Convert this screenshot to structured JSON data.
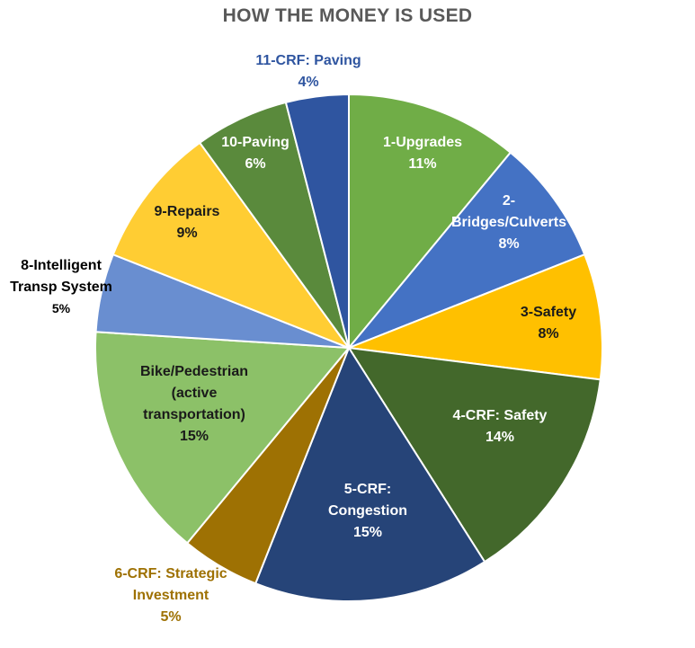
{
  "chart_data": {
    "type": "pie",
    "title": "HOW THE MONEY IS USED",
    "start_angle_deg": 0,
    "direction": "clockwise",
    "slices": [
      {
        "label": [
          "1-Upgrades"
        ],
        "percent_label": "11%",
        "value": 11,
        "color": "#70ad47",
        "label_color": "#ffffff",
        "label_pos": "inside"
      },
      {
        "label": [
          "2-",
          "Bridges/Culverts"
        ],
        "percent_label": "8%",
        "value": 8,
        "color": "#4472c4",
        "label_color": "#ffffff",
        "label_pos": "inside"
      },
      {
        "label": [
          "3-Safety"
        ],
        "percent_label": "8%",
        "value": 8,
        "color": "#ffc000",
        "label_color": "#1a1a1a",
        "label_pos": "inside"
      },
      {
        "label": [
          "4-CRF: Safety"
        ],
        "percent_label": "14%",
        "value": 14,
        "color": "#43682b",
        "label_color": "#ffffff",
        "label_pos": "inside"
      },
      {
        "label": [
          "5-CRF:",
          "Congestion"
        ],
        "percent_label": "15%",
        "value": 15,
        "color": "#264478",
        "label_color": "#ffffff",
        "label_pos": "inside"
      },
      {
        "label": [
          "6-CRF: Strategic",
          "Investment"
        ],
        "percent_label": "5%",
        "value": 5,
        "color": "#9e7103",
        "label_color": "#9e7103",
        "label_pos": "outside"
      },
      {
        "label": [
          "Bike/Pedestrian",
          "(active",
          "transportation)"
        ],
        "percent_label": "15%",
        "value": 15,
        "color": "#8cc168",
        "label_color": "#1a1a1a",
        "label_pos": "inside"
      },
      {
        "label": [
          "8-Intelligent",
          "Transp System"
        ],
        "percent_label": "5%",
        "value": 5,
        "color": "#698ed0",
        "label_color": "#000000",
        "label_pos": "outside"
      },
      {
        "label": [
          "9-Repairs"
        ],
        "percent_label": "9%",
        "value": 9,
        "color": "#ffcd33",
        "label_color": "#1a1a1a",
        "label_pos": "inside"
      },
      {
        "label": [
          "10-Paving"
        ],
        "percent_label": "6%",
        "value": 6,
        "color": "#5a8a3c",
        "label_color": "#ffffff",
        "label_pos": "inside"
      },
      {
        "label": [
          "11-CRF: Paving"
        ],
        "percent_label": "4%",
        "value": 4,
        "color": "#2f55a0",
        "label_color": "#2f55a0",
        "label_pos": "outside"
      }
    ],
    "legend": "none"
  }
}
